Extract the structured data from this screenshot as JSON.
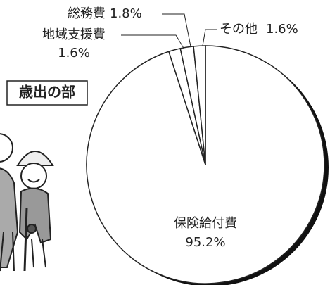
{
  "chart_data": {
    "type": "pie",
    "title": "歳出の部",
    "categories": [
      "保険給付費",
      "地域支援費",
      "総務費",
      "その他"
    ],
    "values": [
      95.2,
      1.6,
      1.8,
      1.6
    ],
    "value_labels": [
      "95.2%",
      "1.6%",
      "1.8%",
      "1.6%"
    ],
    "color": "#ffffff"
  }
}
